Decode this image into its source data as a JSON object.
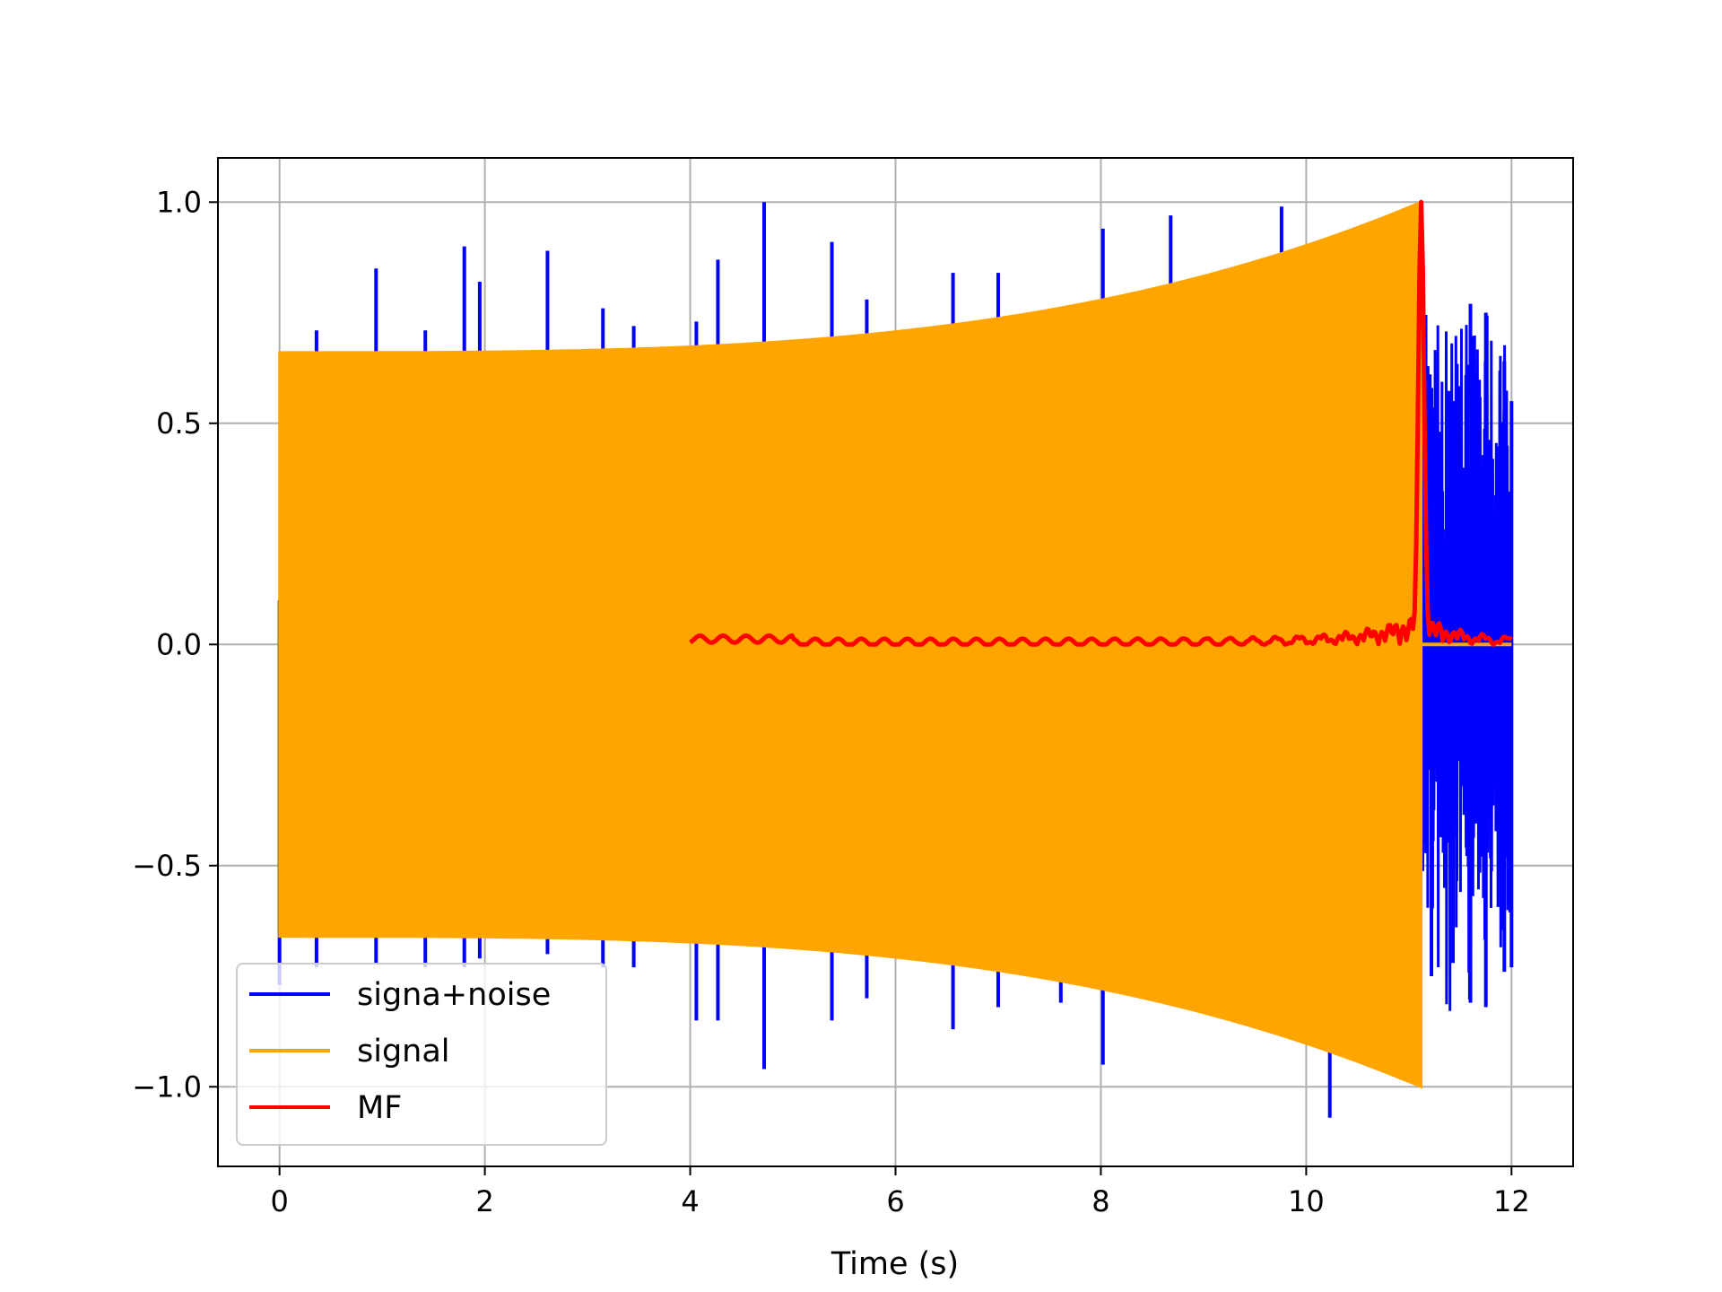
{
  "chart_data": {
    "type": "line",
    "title": "",
    "xlabel": "Time (s)",
    "ylabel": "",
    "xlim": [
      -0.6,
      12.6
    ],
    "ylim": [
      -1.18,
      1.1
    ],
    "xticks": [
      0,
      2,
      4,
      6,
      8,
      10,
      12
    ],
    "xtick_labels": [
      "0",
      "2",
      "4",
      "6",
      "8",
      "10",
      "12"
    ],
    "yticks": [
      -1.0,
      -0.5,
      0.0,
      0.5,
      1.0
    ],
    "ytick_labels": [
      "−1.0",
      "−0.5",
      "0.0",
      "0.5",
      "1.0"
    ],
    "grid": true,
    "legend_position": "lower-left",
    "series": [
      {
        "name": "signa+noise",
        "color": "#0000ff",
        "description_points": {
          "x": [
            0,
            0.36,
            0.94,
            1.42,
            1.8,
            1.95,
            2.61,
            3.15,
            3.45,
            4.06,
            4.27,
            4.72,
            5.38,
            5.72,
            6.56,
            7.0,
            7.61,
            8.02,
            8.68,
            9.76,
            10.23,
            11.22,
            11.43,
            11.6,
            11.75,
            11.93,
            12.0
          ],
          "peak_y": [
            0.1,
            0.71,
            0.85,
            0.71,
            0.9,
            0.82,
            0.89,
            0.76,
            0.72,
            0.73,
            0.87,
            1.0,
            0.91,
            0.78,
            0.84,
            0.84,
            0.76,
            0.94,
            0.97,
            0.99,
            0.71,
            0.58,
            0.55,
            0.77,
            0.75,
            0.64,
            0.55
          ],
          "trough_y": [
            -0.77,
            -0.73,
            -0.72,
            -0.73,
            -0.73,
            -0.71,
            -0.7,
            -0.73,
            -0.73,
            -0.85,
            -0.85,
            -0.96,
            -0.85,
            -0.8,
            -0.87,
            -0.82,
            -0.81,
            -0.95,
            -0.81,
            -0.88,
            -1.07,
            -0.75,
            -0.72,
            -0.81,
            -0.82,
            -0.74,
            -0.73
          ]
        }
      },
      {
        "name": "signal",
        "color": "#ffa500",
        "envelope": {
          "t_start": 0.0,
          "t_end": 11.12,
          "amp_start": 0.66,
          "amp_end": 1.0,
          "after": 0.0,
          "after_end": 12.0
        }
      },
      {
        "name": "MF",
        "color": "#ff0000",
        "x_start": 4.0,
        "x_end": 12.0,
        "peak_x": 11.12,
        "peak_y": 1.0,
        "baseline_y": 0.005,
        "end_y": 0.01
      }
    ]
  }
}
